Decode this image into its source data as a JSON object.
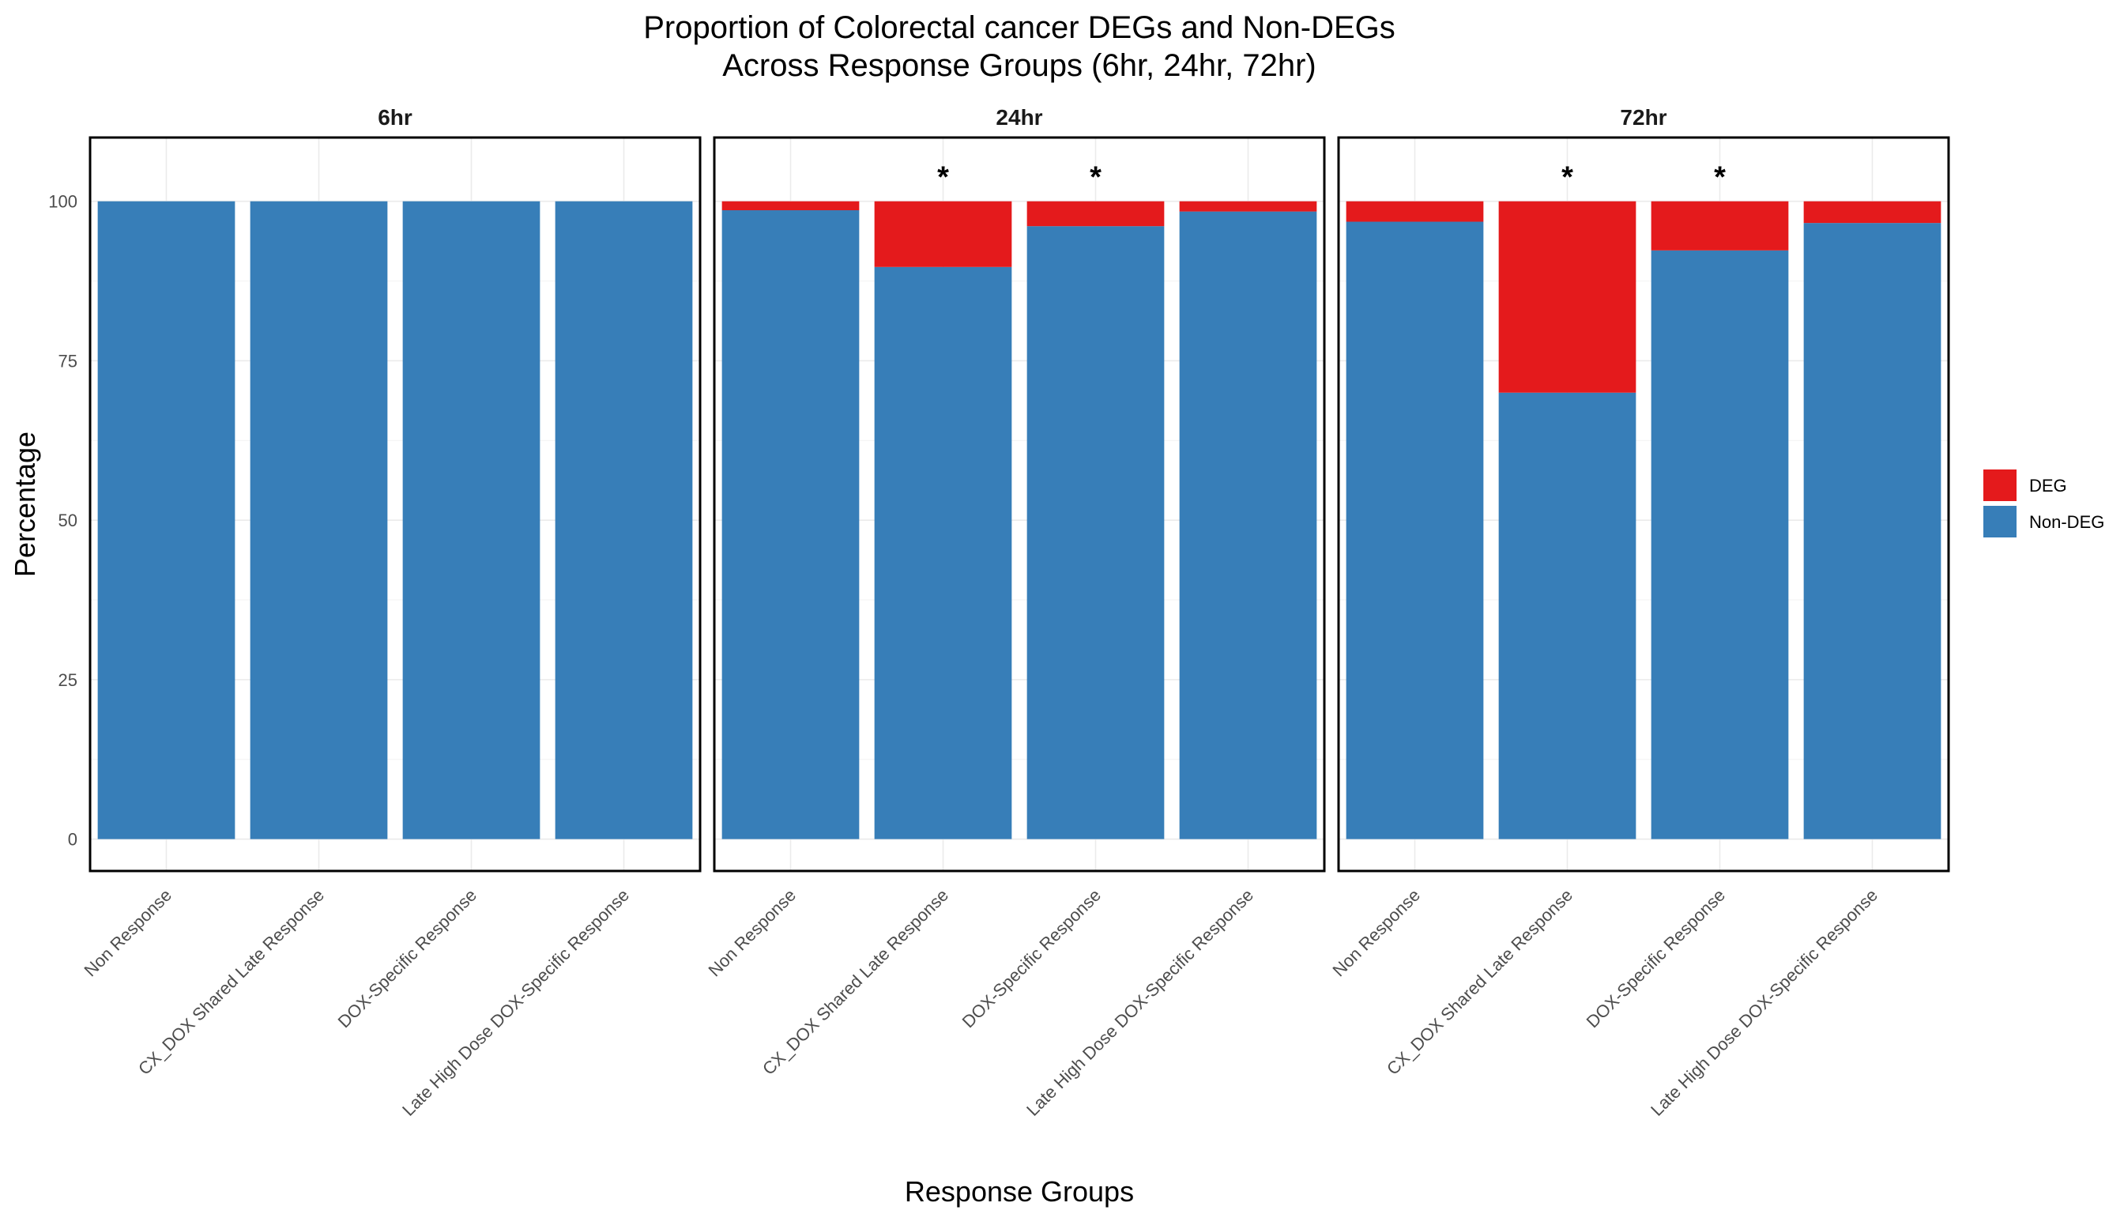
{
  "chart_data": {
    "type": "bar",
    "stacked": true,
    "title": [
      "Proportion of Colorectal cancer DEGs and Non-DEGs",
      "Across Response Groups (6hr, 24hr, 72hr)"
    ],
    "xlabel": "Response Groups",
    "ylabel": "Percentage",
    "ylim": [
      -5,
      110
    ],
    "yticks": [
      0,
      25,
      50,
      75,
      100
    ],
    "categories": [
      "Non Response",
      "CX_DOX Shared Late Response",
      "DOX-Specific Response",
      "Late High Dose DOX-Specific Response"
    ],
    "legend": {
      "position": "right",
      "entries": [
        "DEG",
        "Non-DEG"
      ]
    },
    "colors": {
      "DEG": "#e41a1c",
      "Non-DEG": "#377eb8"
    },
    "grid": true,
    "facets": [
      {
        "label": "6hr",
        "series": [
          {
            "name": "Non-DEG",
            "values": [
              100,
              100,
              100,
              100
            ]
          },
          {
            "name": "DEG",
            "values": [
              0,
              0,
              0,
              0
            ]
          }
        ],
        "significance": [
          "",
          "",
          "",
          ""
        ]
      },
      {
        "label": "24hr",
        "series": [
          {
            "name": "Non-DEG",
            "values": [
              98.6,
              89.7,
              96.1,
              98.4
            ]
          },
          {
            "name": "DEG",
            "values": [
              1.4,
              10.3,
              3.9,
              1.6
            ]
          }
        ],
        "significance": [
          "",
          "*",
          "*",
          ""
        ]
      },
      {
        "label": "72hr",
        "series": [
          {
            "name": "Non-DEG",
            "values": [
              96.8,
              70.0,
              92.3,
              96.6
            ]
          },
          {
            "name": "DEG",
            "values": [
              3.2,
              30.0,
              7.7,
              3.4
            ]
          }
        ],
        "significance": [
          "",
          "*",
          "*",
          ""
        ]
      }
    ]
  }
}
